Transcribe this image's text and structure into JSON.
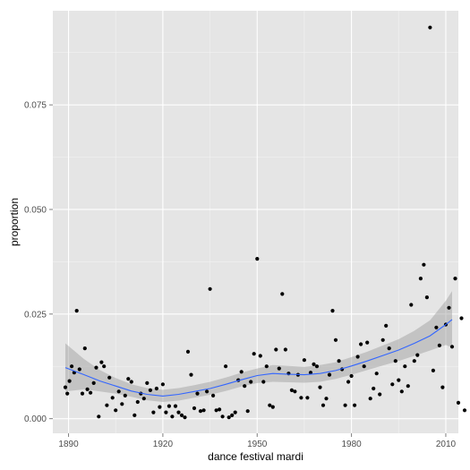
{
  "chart_data": {
    "type": "scatter",
    "xlabel": "dance festival mardi",
    "ylabel": "proportion",
    "xlim": [
      1885,
      2014
    ],
    "ylim": [
      -0.0035,
      0.0975
    ],
    "x_ticks": [
      1890,
      1920,
      1950,
      1980,
      2010
    ],
    "x_tick_labels": [
      "1890",
      "1920",
      "1950",
      "1980",
      "2010"
    ],
    "y_ticks": [
      0.0,
      0.025,
      0.05,
      0.075
    ],
    "y_tick_labels": [
      "0.000",
      "0.025",
      "0.050",
      "0.075"
    ],
    "grid": true,
    "background_color": "#e5e5e5",
    "grid_color": "#ffffff",
    "point_color": "#000000",
    "smooth_color": "#3366ff",
    "band_color": "#999999",
    "points": [
      [
        1889,
        0.0075
      ],
      [
        1889.6,
        0.006
      ],
      [
        1890.3,
        0.009
      ],
      [
        1891,
        0.0125
      ],
      [
        1891.8,
        0.011
      ],
      [
        1892.6,
        0.0258
      ],
      [
        1893.5,
        0.0118
      ],
      [
        1894.4,
        0.006
      ],
      [
        1895.2,
        0.0168
      ],
      [
        1896,
        0.007
      ],
      [
        1897,
        0.0062
      ],
      [
        1898,
        0.0085
      ],
      [
        1898.8,
        0.0122
      ],
      [
        1899.6,
        0.0005
      ],
      [
        1900.5,
        0.0135
      ],
      [
        1901.3,
        0.0125
      ],
      [
        1902.2,
        0.0032
      ],
      [
        1903,
        0.0098
      ],
      [
        1904,
        0.005
      ],
      [
        1905,
        0.002
      ],
      [
        1906,
        0.0065
      ],
      [
        1907,
        0.0035
      ],
      [
        1908,
        0.0055
      ],
      [
        1909,
        0.0095
      ],
      [
        1910,
        0.0088
      ],
      [
        1911,
        0.0008
      ],
      [
        1912,
        0.004
      ],
      [
        1913,
        0.006
      ],
      [
        1914,
        0.0048
      ],
      [
        1915,
        0.0085
      ],
      [
        1916,
        0.0068
      ],
      [
        1917,
        0.0015
      ],
      [
        1918,
        0.0072
      ],
      [
        1919,
        0.0028
      ],
      [
        1920,
        0.0082
      ],
      [
        1921,
        0.0015
      ],
      [
        1922,
        0.003
      ],
      [
        1923,
        0.0005
      ],
      [
        1924,
        0.003
      ],
      [
        1925,
        0.0015
      ],
      [
        1926,
        0.0008
      ],
      [
        1927,
        0.0003
      ],
      [
        1928,
        0.016
      ],
      [
        1929,
        0.0105
      ],
      [
        1930,
        0.0025
      ],
      [
        1931,
        0.006
      ],
      [
        1932,
        0.0018
      ],
      [
        1933,
        0.002
      ],
      [
        1934,
        0.0065
      ],
      [
        1935,
        0.031
      ],
      [
        1936,
        0.0055
      ],
      [
        1937,
        0.002
      ],
      [
        1938,
        0.0022
      ],
      [
        1939,
        0.0005
      ],
      [
        1940,
        0.0125
      ],
      [
        1941,
        0.0003
      ],
      [
        1942,
        0.0008
      ],
      [
        1943,
        0.0015
      ],
      [
        1944,
        0.0092
      ],
      [
        1945,
        0.0112
      ],
      [
        1946,
        0.0078
      ],
      [
        1947,
        0.0018
      ],
      [
        1948,
        0.0088
      ],
      [
        1949,
        0.0155
      ],
      [
        1950,
        0.0382
      ],
      [
        1951,
        0.015
      ],
      [
        1952,
        0.0088
      ],
      [
        1953,
        0.0125
      ],
      [
        1954,
        0.0032
      ],
      [
        1955,
        0.0028
      ],
      [
        1956,
        0.0165
      ],
      [
        1957,
        0.012
      ],
      [
        1958,
        0.0298
      ],
      [
        1959,
        0.0165
      ],
      [
        1960,
        0.0108
      ],
      [
        1961,
        0.0068
      ],
      [
        1962,
        0.0065
      ],
      [
        1963,
        0.0105
      ],
      [
        1964,
        0.005
      ],
      [
        1965,
        0.014
      ],
      [
        1966,
        0.005
      ],
      [
        1967,
        0.011
      ],
      [
        1968,
        0.013
      ],
      [
        1969,
        0.0125
      ],
      [
        1970,
        0.0075
      ],
      [
        1971,
        0.0032
      ],
      [
        1972,
        0.0048
      ],
      [
        1973,
        0.0105
      ],
      [
        1974,
        0.0258
      ],
      [
        1975,
        0.0188
      ],
      [
        1976,
        0.0138
      ],
      [
        1977,
        0.0118
      ],
      [
        1978,
        0.0032
      ],
      [
        1979,
        0.0088
      ],
      [
        1980,
        0.0102
      ],
      [
        1981,
        0.0032
      ],
      [
        1982,
        0.0148
      ],
      [
        1983,
        0.0178
      ],
      [
        1984,
        0.0125
      ],
      [
        1985,
        0.0182
      ],
      [
        1986,
        0.0048
      ],
      [
        1987,
        0.0072
      ],
      [
        1988,
        0.0108
      ],
      [
        1989,
        0.0058
      ],
      [
        1990,
        0.0188
      ],
      [
        1991,
        0.0222
      ],
      [
        1992,
        0.0168
      ],
      [
        1993,
        0.0082
      ],
      [
        1994,
        0.0138
      ],
      [
        1995,
        0.0092
      ],
      [
        1996,
        0.0065
      ],
      [
        1997,
        0.0125
      ],
      [
        1998,
        0.0078
      ],
      [
        1999,
        0.0272
      ],
      [
        2000,
        0.0138
      ],
      [
        2001,
        0.0152
      ],
      [
        2002,
        0.0335
      ],
      [
        2003,
        0.0368
      ],
      [
        2004,
        0.029
      ],
      [
        2005,
        0.0935
      ],
      [
        2006,
        0.0115
      ],
      [
        2007,
        0.0218
      ],
      [
        2008,
        0.0175
      ],
      [
        2009,
        0.0075
      ],
      [
        2010,
        0.0225
      ],
      [
        2011,
        0.0265
      ],
      [
        2012,
        0.0172
      ],
      [
        2013,
        0.0335
      ],
      [
        2014,
        0.0038
      ],
      [
        2015,
        0.024
      ],
      [
        2016,
        0.002
      ]
    ],
    "smooth": {
      "x": [
        1889,
        1895,
        1900,
        1905,
        1910,
        1915,
        1920,
        1925,
        1930,
        1935,
        1940,
        1945,
        1950,
        1955,
        1960,
        1965,
        1970,
        1975,
        1980,
        1985,
        1990,
        1995,
        2000,
        2005,
        2010,
        2012
      ],
      "y": [
        0.0122,
        0.0105,
        0.009,
        0.0078,
        0.0066,
        0.0058,
        0.0054,
        0.0058,
        0.0065,
        0.0072,
        0.0082,
        0.0093,
        0.0103,
        0.0108,
        0.0106,
        0.0105,
        0.0108,
        0.0115,
        0.0126,
        0.0138,
        0.0151,
        0.0164,
        0.018,
        0.0198,
        0.0225,
        0.0237
      ],
      "lower": [
        0.0065,
        0.007,
        0.0065,
        0.006,
        0.0052,
        0.0044,
        0.004,
        0.0043,
        0.005,
        0.0057,
        0.0066,
        0.0077,
        0.0085,
        0.0088,
        0.0087,
        0.0086,
        0.0088,
        0.0095,
        0.0105,
        0.0116,
        0.0127,
        0.0138,
        0.015,
        0.0163,
        0.0176,
        0.017
      ],
      "upper": [
        0.018,
        0.0142,
        0.0116,
        0.0097,
        0.0082,
        0.0073,
        0.0069,
        0.0073,
        0.008,
        0.0088,
        0.0098,
        0.011,
        0.012,
        0.0128,
        0.0126,
        0.0124,
        0.0128,
        0.0135,
        0.0147,
        0.016,
        0.0175,
        0.019,
        0.021,
        0.0235,
        0.0282,
        0.0305
      ]
    }
  }
}
